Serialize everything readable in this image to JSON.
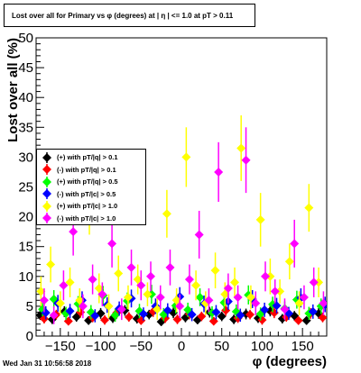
{
  "title": "Lost over all for Primary vs φ (degrees) at | η | <= 1.0 at pT > 0.11",
  "footer": "Wed Jan 31 10:56:58 2018",
  "chart_data": {
    "type": "scatter",
    "title": "Lost over all for Primary vs φ (degrees) at | η | <= 1.0 at pT > 0.11",
    "xlabel": "φ (degrees)",
    "ylabel": "Lost over all (%)",
    "xlim": [
      -180,
      180
    ],
    "ylim": [
      0,
      50
    ],
    "xticks": [
      -150,
      -100,
      -50,
      0,
      50,
      100,
      150
    ],
    "yticks": [
      0,
      5,
      10,
      15,
      20,
      25,
      30,
      35,
      40,
      45,
      50
    ],
    "grid": false,
    "legend_position": "left",
    "series": [
      {
        "name": "(+) with pT/|q| > 0.1",
        "color": "#000000",
        "points": [
          [
            -175,
            3.5,
            0.8
          ],
          [
            -160,
            2.8,
            0.8
          ],
          [
            -145,
            4.1,
            0.9
          ],
          [
            -130,
            3.2,
            0.8
          ],
          [
            -115,
            2.6,
            0.7
          ],
          [
            -100,
            3.8,
            0.9
          ],
          [
            -85,
            3.0,
            0.8
          ],
          [
            -70,
            4.3,
            0.9
          ],
          [
            -55,
            2.9,
            0.8
          ],
          [
            -40,
            3.6,
            0.8
          ],
          [
            -25,
            2.4,
            0.7
          ],
          [
            -10,
            3.9,
            0.9
          ],
          [
            5,
            3.1,
            0.8
          ],
          [
            20,
            2.7,
            0.7
          ],
          [
            35,
            4.0,
            0.9
          ],
          [
            50,
            3.3,
            0.8
          ],
          [
            65,
            2.8,
            0.8
          ],
          [
            80,
            3.7,
            0.9
          ],
          [
            95,
            3.0,
            0.8
          ],
          [
            110,
            4.2,
            0.9
          ],
          [
            125,
            2.9,
            0.8
          ],
          [
            140,
            3.4,
            0.8
          ],
          [
            155,
            2.6,
            0.7
          ],
          [
            170,
            3.8,
            0.9
          ]
        ]
      },
      {
        "name": "(-) with pT/|q| > 0.1",
        "color": "#ff0000",
        "points": [
          [
            -170,
            2.9,
            0.8
          ],
          [
            -155,
            3.6,
            0.8
          ],
          [
            -140,
            2.5,
            0.7
          ],
          [
            -125,
            4.0,
            0.9
          ],
          [
            -110,
            3.1,
            0.8
          ],
          [
            -95,
            2.7,
            0.8
          ],
          [
            -80,
            3.9,
            0.9
          ],
          [
            -65,
            3.2,
            0.8
          ],
          [
            -50,
            2.6,
            0.7
          ],
          [
            -35,
            4.1,
            0.9
          ],
          [
            -20,
            3.0,
            0.8
          ],
          [
            -5,
            2.8,
            0.8
          ],
          [
            10,
            3.7,
            0.9
          ],
          [
            25,
            3.3,
            0.8
          ],
          [
            40,
            2.5,
            0.7
          ],
          [
            55,
            4.3,
            0.9
          ],
          [
            70,
            3.0,
            0.8
          ],
          [
            85,
            3.6,
            0.8
          ],
          [
            100,
            2.7,
            0.8
          ],
          [
            115,
            3.9,
            0.9
          ],
          [
            130,
            3.2,
            0.8
          ],
          [
            145,
            2.6,
            0.7
          ],
          [
            160,
            3.8,
            0.9
          ],
          [
            175,
            3.1,
            0.8
          ]
        ]
      },
      {
        "name": "(+) with pT/|q| > 0.5",
        "color": "#00ff00",
        "points": [
          [
            -172,
            4.5,
            1.2
          ],
          [
            -158,
            6.2,
            1.5
          ],
          [
            -143,
            3.8,
            1.1
          ],
          [
            -128,
            5.4,
            1.3
          ],
          [
            -112,
            4.0,
            1.2
          ],
          [
            -97,
            6.8,
            1.6
          ],
          [
            -82,
            3.5,
            1.1
          ],
          [
            -67,
            5.9,
            1.4
          ],
          [
            -52,
            4.2,
            1.2
          ],
          [
            -37,
            7.0,
            1.6
          ],
          [
            -22,
            3.6,
            1.1
          ],
          [
            -7,
            5.1,
            1.3
          ],
          [
            8,
            4.4,
            1.2
          ],
          [
            23,
            6.5,
            1.5
          ],
          [
            38,
            3.9,
            1.1
          ],
          [
            53,
            5.6,
            1.4
          ],
          [
            68,
            4.1,
            1.2
          ],
          [
            83,
            6.9,
            1.6
          ],
          [
            98,
            3.7,
            1.1
          ],
          [
            113,
            5.3,
            1.3
          ],
          [
            128,
            4.6,
            1.2
          ],
          [
            143,
            6.1,
            1.5
          ],
          [
            158,
            3.8,
            1.1
          ],
          [
            173,
            5.0,
            1.3
          ]
        ]
      },
      {
        "name": "(-) with pT/|c| > 0.5",
        "color": "#0000ff",
        "points": [
          [
            -168,
            3.9,
            1.1
          ],
          [
            -153,
            5.5,
            1.4
          ],
          [
            -138,
            4.2,
            1.2
          ],
          [
            -123,
            6.0,
            1.5
          ],
          [
            -107,
            3.4,
            1.1
          ],
          [
            -92,
            5.2,
            1.3
          ],
          [
            -77,
            4.6,
            1.2
          ],
          [
            -62,
            6.3,
            1.5
          ],
          [
            -47,
            3.7,
            1.1
          ],
          [
            -32,
            5.0,
            1.3
          ],
          [
            -17,
            4.3,
            1.2
          ],
          [
            -2,
            6.6,
            1.6
          ],
          [
            13,
            3.6,
            1.1
          ],
          [
            28,
            5.4,
            1.4
          ],
          [
            43,
            4.0,
            1.2
          ],
          [
            58,
            5.8,
            1.4
          ],
          [
            73,
            3.5,
            1.1
          ],
          [
            88,
            6.2,
            1.5
          ],
          [
            103,
            4.4,
            1.2
          ],
          [
            118,
            5.1,
            1.3
          ],
          [
            133,
            3.8,
            1.1
          ],
          [
            148,
            6.4,
            1.6
          ],
          [
            163,
            4.1,
            1.2
          ],
          [
            178,
            5.3,
            1.3
          ]
        ]
      },
      {
        "name": "(+) with pT/|c| > 1.0",
        "color": "#ffff00",
        "points": [
          [
            -174,
            7.5,
            2.5
          ],
          [
            -162,
            12.0,
            3.0
          ],
          [
            -150,
            5.5,
            2.0
          ],
          [
            -138,
            9.0,
            2.5
          ],
          [
            -126,
            6.0,
            2.0
          ],
          [
            -114,
            21.5,
            4.5
          ],
          [
            -102,
            8.0,
            2.5
          ],
          [
            -90,
            5.0,
            2.0
          ],
          [
            -78,
            10.5,
            3.0
          ],
          [
            -66,
            6.5,
            2.0
          ],
          [
            -54,
            9.5,
            2.5
          ],
          [
            -42,
            7.0,
            2.0
          ],
          [
            -30,
            4.5,
            1.8
          ],
          [
            -18,
            20.5,
            4.0
          ],
          [
            -6,
            6.0,
            2.0
          ],
          [
            6,
            30.0,
            5.0
          ],
          [
            18,
            8.5,
            2.5
          ],
          [
            30,
            5.5,
            2.0
          ],
          [
            42,
            11.0,
            3.0
          ],
          [
            54,
            7.0,
            2.0
          ],
          [
            66,
            9.0,
            2.5
          ],
          [
            74,
            31.5,
            5.5
          ],
          [
            86,
            6.5,
            2.0
          ],
          [
            98,
            19.5,
            4.5
          ],
          [
            110,
            10.0,
            3.0
          ],
          [
            122,
            7.5,
            2.0
          ],
          [
            134,
            12.5,
            3.0
          ],
          [
            146,
            5.5,
            2.0
          ],
          [
            158,
            21.5,
            4.0
          ],
          [
            170,
            9.0,
            2.5
          ]
        ]
      },
      {
        "name": "(-) with pT/|c| > 1.0",
        "color": "#ff00ff",
        "points": [
          [
            -170,
            6.0,
            2.0
          ],
          [
            -158,
            3.5,
            1.5
          ],
          [
            -146,
            8.5,
            2.5
          ],
          [
            -134,
            17.5,
            4.0
          ],
          [
            -122,
            5.0,
            2.0
          ],
          [
            -110,
            9.5,
            2.5
          ],
          [
            -98,
            7.0,
            2.0
          ],
          [
            -86,
            15.5,
            4.0
          ],
          [
            -74,
            4.5,
            1.8
          ],
          [
            -62,
            11.5,
            3.0
          ],
          [
            -50,
            8.5,
            2.5
          ],
          [
            -38,
            10.0,
            2.5
          ],
          [
            -26,
            6.5,
            2.0
          ],
          [
            -14,
            11.5,
            3.0
          ],
          [
            -2,
            5.0,
            2.0
          ],
          [
            10,
            9.5,
            2.5
          ],
          [
            22,
            17.0,
            4.0
          ],
          [
            34,
            6.0,
            2.0
          ],
          [
            46,
            27.5,
            5.0
          ],
          [
            58,
            8.0,
            2.5
          ],
          [
            70,
            6.5,
            2.0
          ],
          [
            80,
            29.5,
            5.5
          ],
          [
            92,
            5.5,
            2.0
          ],
          [
            104,
            10.0,
            2.5
          ],
          [
            116,
            7.5,
            2.0
          ],
          [
            128,
            4.5,
            1.8
          ],
          [
            140,
            15.5,
            4.0
          ],
          [
            152,
            6.5,
            2.0
          ],
          [
            164,
            9.0,
            2.5
          ],
          [
            176,
            5.5,
            2.0
          ]
        ]
      }
    ]
  }
}
